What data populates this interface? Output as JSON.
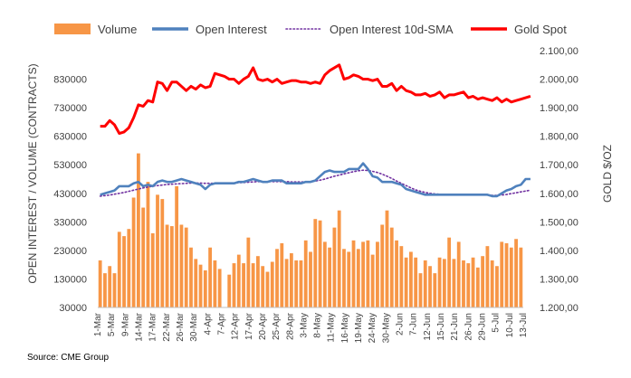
{
  "chart_data": {
    "type": "bar+line",
    "legend": {
      "position": "top",
      "items": [
        {
          "label": "Volume",
          "kind": "bar",
          "color": "#F79646"
        },
        {
          "label": "Open Interest",
          "kind": "line",
          "color": "#4F81BD"
        },
        {
          "label": "Open Interest 10d-SMA",
          "kind": "dotted",
          "color": "#7030A0"
        },
        {
          "label": "Gold Spot",
          "kind": "line",
          "color": "#FF0000"
        }
      ]
    },
    "left_axis": {
      "label": "OPEN INTEREST / VOLUME (CONTRACTS)",
      "min": 30000,
      "max": 930000,
      "ticks": [
        "830000",
        "730000",
        "630000",
        "530000",
        "430000",
        "330000",
        "230000",
        "130000",
        "30000"
      ],
      "tick_values": [
        830000,
        730000,
        630000,
        530000,
        430000,
        330000,
        230000,
        130000,
        30000
      ]
    },
    "right_axis": {
      "label": "GOLD $/OZ",
      "min": 1200,
      "max": 2100,
      "ticks": [
        "2.100,00",
        "2.000,00",
        "1.900,00",
        "1.800,00",
        "1.700,00",
        "1.600,00",
        "1.500,00",
        "1.400,00",
        "1.300,00",
        "1.200,00"
      ],
      "tick_values": [
        2100,
        2000,
        1900,
        1800,
        1700,
        1600,
        1500,
        1400,
        1300,
        1200
      ]
    },
    "x_tick_labels": [
      "1-Mar",
      "5-Mar",
      "9-Mar",
      "14-Mar",
      "17-Mar",
      "22-Mar",
      "26-Mar",
      "30-Mar",
      "4-Apr",
      "7-Apr",
      "12-Apr",
      "17-Apr",
      "20-Apr",
      "25-Apr",
      "28-Apr",
      "3-May",
      "8-May",
      "11-May",
      "16-May",
      "19-May",
      "24-May",
      "30-May",
      "2-Jun",
      "7-Jun",
      "12-Jun",
      "15-Jun",
      "21-Jun",
      "26-Jun",
      "29-Jun",
      "5-Jul",
      "10-Jul",
      "13-Jul"
    ],
    "series": [
      {
        "name": "Volume",
        "type": "bar",
        "axis": "left",
        "values": [
          195000,
          150000,
          175000,
          150000,
          295000,
          280000,
          305000,
          415000,
          570000,
          380000,
          470000,
          290000,
          425000,
          410000,
          320000,
          315000,
          455000,
          320000,
          310000,
          240000,
          200000,
          180000,
          160000,
          240000,
          195000,
          165000,
          null,
          145000,
          185000,
          215000,
          185000,
          275000,
          185000,
          210000,
          175000,
          155000,
          190000,
          235000,
          255000,
          200000,
          220000,
          195000,
          195000,
          265000,
          225000,
          340000,
          335000,
          260000,
          240000,
          310000,
          370000,
          235000,
          225000,
          265000,
          235000,
          260000,
          265000,
          215000,
          260000,
          320000,
          370000,
          310000,
          265000,
          245000,
          205000,
          225000,
          205000,
          150000,
          195000,
          175000,
          150000,
          205000,
          200000,
          275000,
          200000,
          260000,
          195000,
          185000,
          205000,
          170000,
          210000,
          245000,
          195000,
          175000,
          260000,
          255000,
          240000,
          270000,
          240000
        ]
      },
      {
        "name": "Open Interest",
        "type": "line",
        "axis": "left",
        "values": [
          425000,
          430000,
          435000,
          440000,
          455000,
          455000,
          455000,
          465000,
          470000,
          455000,
          460000,
          455000,
          470000,
          475000,
          470000,
          470000,
          475000,
          480000,
          475000,
          470000,
          465000,
          460000,
          445000,
          460000,
          465000,
          465000,
          465000,
          465000,
          465000,
          470000,
          470000,
          475000,
          480000,
          475000,
          470000,
          470000,
          475000,
          475000,
          475000,
          465000,
          465000,
          465000,
          465000,
          470000,
          470000,
          475000,
          490000,
          505000,
          510000,
          505000,
          505000,
          505000,
          515000,
          515000,
          515000,
          535000,
          515000,
          490000,
          485000,
          470000,
          470000,
          470000,
          465000,
          460000,
          445000,
          440000,
          435000,
          430000,
          425000,
          425000,
          425000,
          425000,
          425000,
          425000,
          425000,
          425000,
          425000,
          425000,
          425000,
          425000,
          425000,
          425000,
          420000,
          420000,
          430000,
          440000,
          445000,
          455000,
          460000,
          480000,
          480000
        ]
      },
      {
        "name": "Open Interest 10d-SMA",
        "type": "dotted",
        "axis": "left",
        "values": [
          420000,
          422000,
          424000,
          427000,
          430000,
          433000,
          437000,
          441000,
          445000,
          449000,
          452000,
          455000,
          457000,
          459000,
          461000,
          462000,
          463000,
          464000,
          465000,
          466000,
          466000,
          466000,
          465000,
          465000,
          465000,
          465000,
          465000,
          465000,
          466000,
          467000,
          468000,
          469000,
          470000,
          471000,
          471000,
          471000,
          471000,
          471000,
          471000,
          471000,
          470000,
          470000,
          470000,
          470000,
          471000,
          473000,
          476000,
          480000,
          485000,
          490000,
          494000,
          498000,
          502000,
          506000,
          509000,
          511000,
          510000,
          507000,
          503000,
          497000,
          490000,
          482000,
          473000,
          465000,
          457000,
          449000,
          442000,
          437000,
          433000,
          430000,
          428000,
          427000,
          426000,
          425000,
          425000,
          425000,
          425000,
          425000,
          425000,
          425000,
          425000,
          424000,
          423000,
          423000,
          424000,
          426000,
          429000,
          432000,
          435000,
          438000,
          441000
        ]
      },
      {
        "name": "Gold Spot",
        "type": "line",
        "axis": "right",
        "values": [
          1835,
          1835,
          1855,
          1840,
          1810,
          1815,
          1830,
          1865,
          1910,
          1905,
          1925,
          1920,
          1990,
          1985,
          1960,
          1990,
          1990,
          1975,
          1960,
          1975,
          1965,
          1980,
          1970,
          1975,
          2020,
          2015,
          2010,
          2000,
          2000,
          1985,
          2000,
          2010,
          2040,
          2000,
          1995,
          2000,
          1990,
          2000,
          1985,
          1990,
          1995,
          1995,
          1990,
          1990,
          1985,
          1990,
          1985,
          2015,
          2030,
          2040,
          2050,
          2000,
          2005,
          2015,
          2010,
          2000,
          2000,
          1995,
          2000,
          1975,
          1975,
          1985,
          1960,
          1975,
          1960,
          1955,
          1945,
          1945,
          1950,
          1940,
          1945,
          1955,
          1935,
          1945,
          1945,
          1950,
          1955,
          1935,
          1940,
          1930,
          1935,
          1930,
          1925,
          1935,
          1920,
          1930,
          1920,
          1925,
          1930,
          1935,
          1940
        ]
      }
    ]
  },
  "source": "Source: CME Group"
}
